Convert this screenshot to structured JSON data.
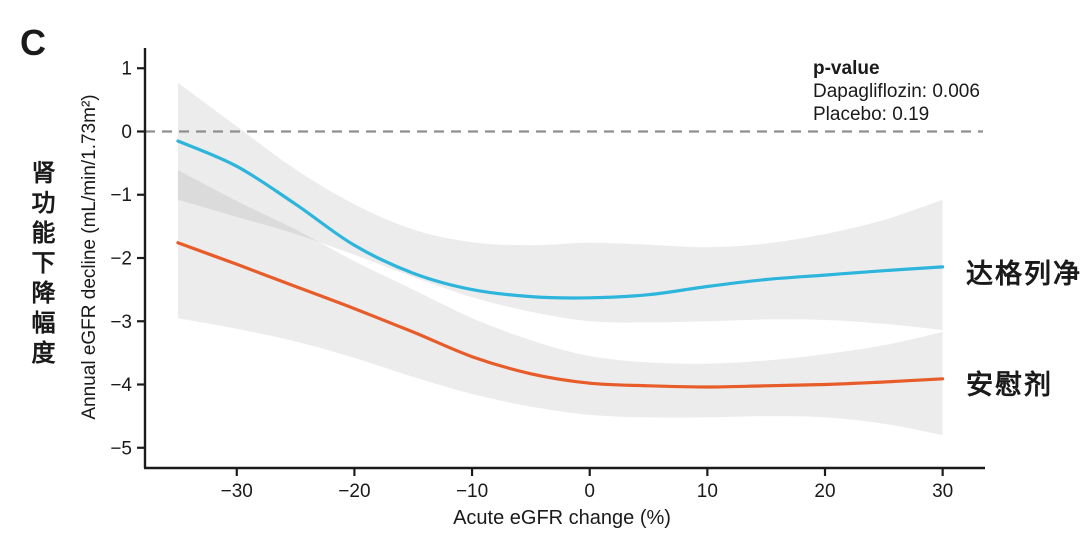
{
  "figure": {
    "panel_label": "C",
    "background": "#ffffff"
  },
  "chart_data": {
    "type": "line",
    "title": "",
    "xlabel": "Acute eGFR change (%)",
    "ylabel": "Annual eGFR decline (mL/min/1.73m²)",
    "ylabel_cn": "肾功能下降幅度",
    "xlim": [
      -37.8,
      33.6
    ],
    "ylim": [
      -5.32,
      1.32
    ],
    "x_ticks": [
      -30,
      -20,
      -10,
      0,
      10,
      20,
      30
    ],
    "y_ticks": [
      1,
      0,
      -1,
      -2,
      -3,
      -4,
      -5
    ],
    "grid": false,
    "zero_reference_line": 0,
    "zero_line_color": "#8f8f8f",
    "band_color": "rgba(70,70,82,0.10)",
    "axis_color": "#1b1b1b",
    "x": [
      -35,
      -30,
      -25,
      -20,
      -15,
      -10,
      -5,
      0,
      5,
      10,
      15,
      20,
      25,
      30
    ],
    "series": [
      {
        "name": "Dapagliflozin",
        "label_cn": "达格列净",
        "color": "#2eb5dc",
        "values": [
          -0.15,
          -0.55,
          -1.15,
          -1.8,
          -2.24,
          -2.5,
          -2.61,
          -2.63,
          -2.58,
          -2.45,
          -2.34,
          -2.27,
          -2.2,
          -2.14
        ],
        "band_upper": [
          0.77,
          0.08,
          -0.6,
          -1.15,
          -1.55,
          -1.75,
          -1.8,
          -1.76,
          -1.79,
          -1.83,
          -1.77,
          -1.62,
          -1.4,
          -1.08
        ],
        "band_lower": [
          -1.08,
          -1.35,
          -1.62,
          -1.95,
          -2.3,
          -2.62,
          -2.85,
          -3.0,
          -3.02,
          -3.0,
          -2.97,
          -2.98,
          -3.04,
          -3.14
        ]
      },
      {
        "name": "Placebo",
        "label_cn": "安慰剂",
        "color": "#e85c2a",
        "values": [
          -1.76,
          -2.1,
          -2.45,
          -2.8,
          -3.17,
          -3.56,
          -3.83,
          -3.98,
          -4.02,
          -4.04,
          -4.02,
          -4.0,
          -3.96,
          -3.91
        ],
        "band_upper": [
          -0.61,
          -1.1,
          -1.55,
          -2.05,
          -2.5,
          -2.95,
          -3.3,
          -3.55,
          -3.65,
          -3.67,
          -3.62,
          -3.52,
          -3.38,
          -3.17
        ],
        "band_lower": [
          -2.95,
          -3.12,
          -3.32,
          -3.58,
          -3.88,
          -4.15,
          -4.35,
          -4.48,
          -4.52,
          -4.52,
          -4.5,
          -4.52,
          -4.62,
          -4.8
        ]
      }
    ],
    "annotation": {
      "title": "p-value",
      "lines": [
        "Dapagliflozin: 0.006",
        "Placebo: 0.19"
      ]
    },
    "legend_position": "right-of-line-ends"
  }
}
